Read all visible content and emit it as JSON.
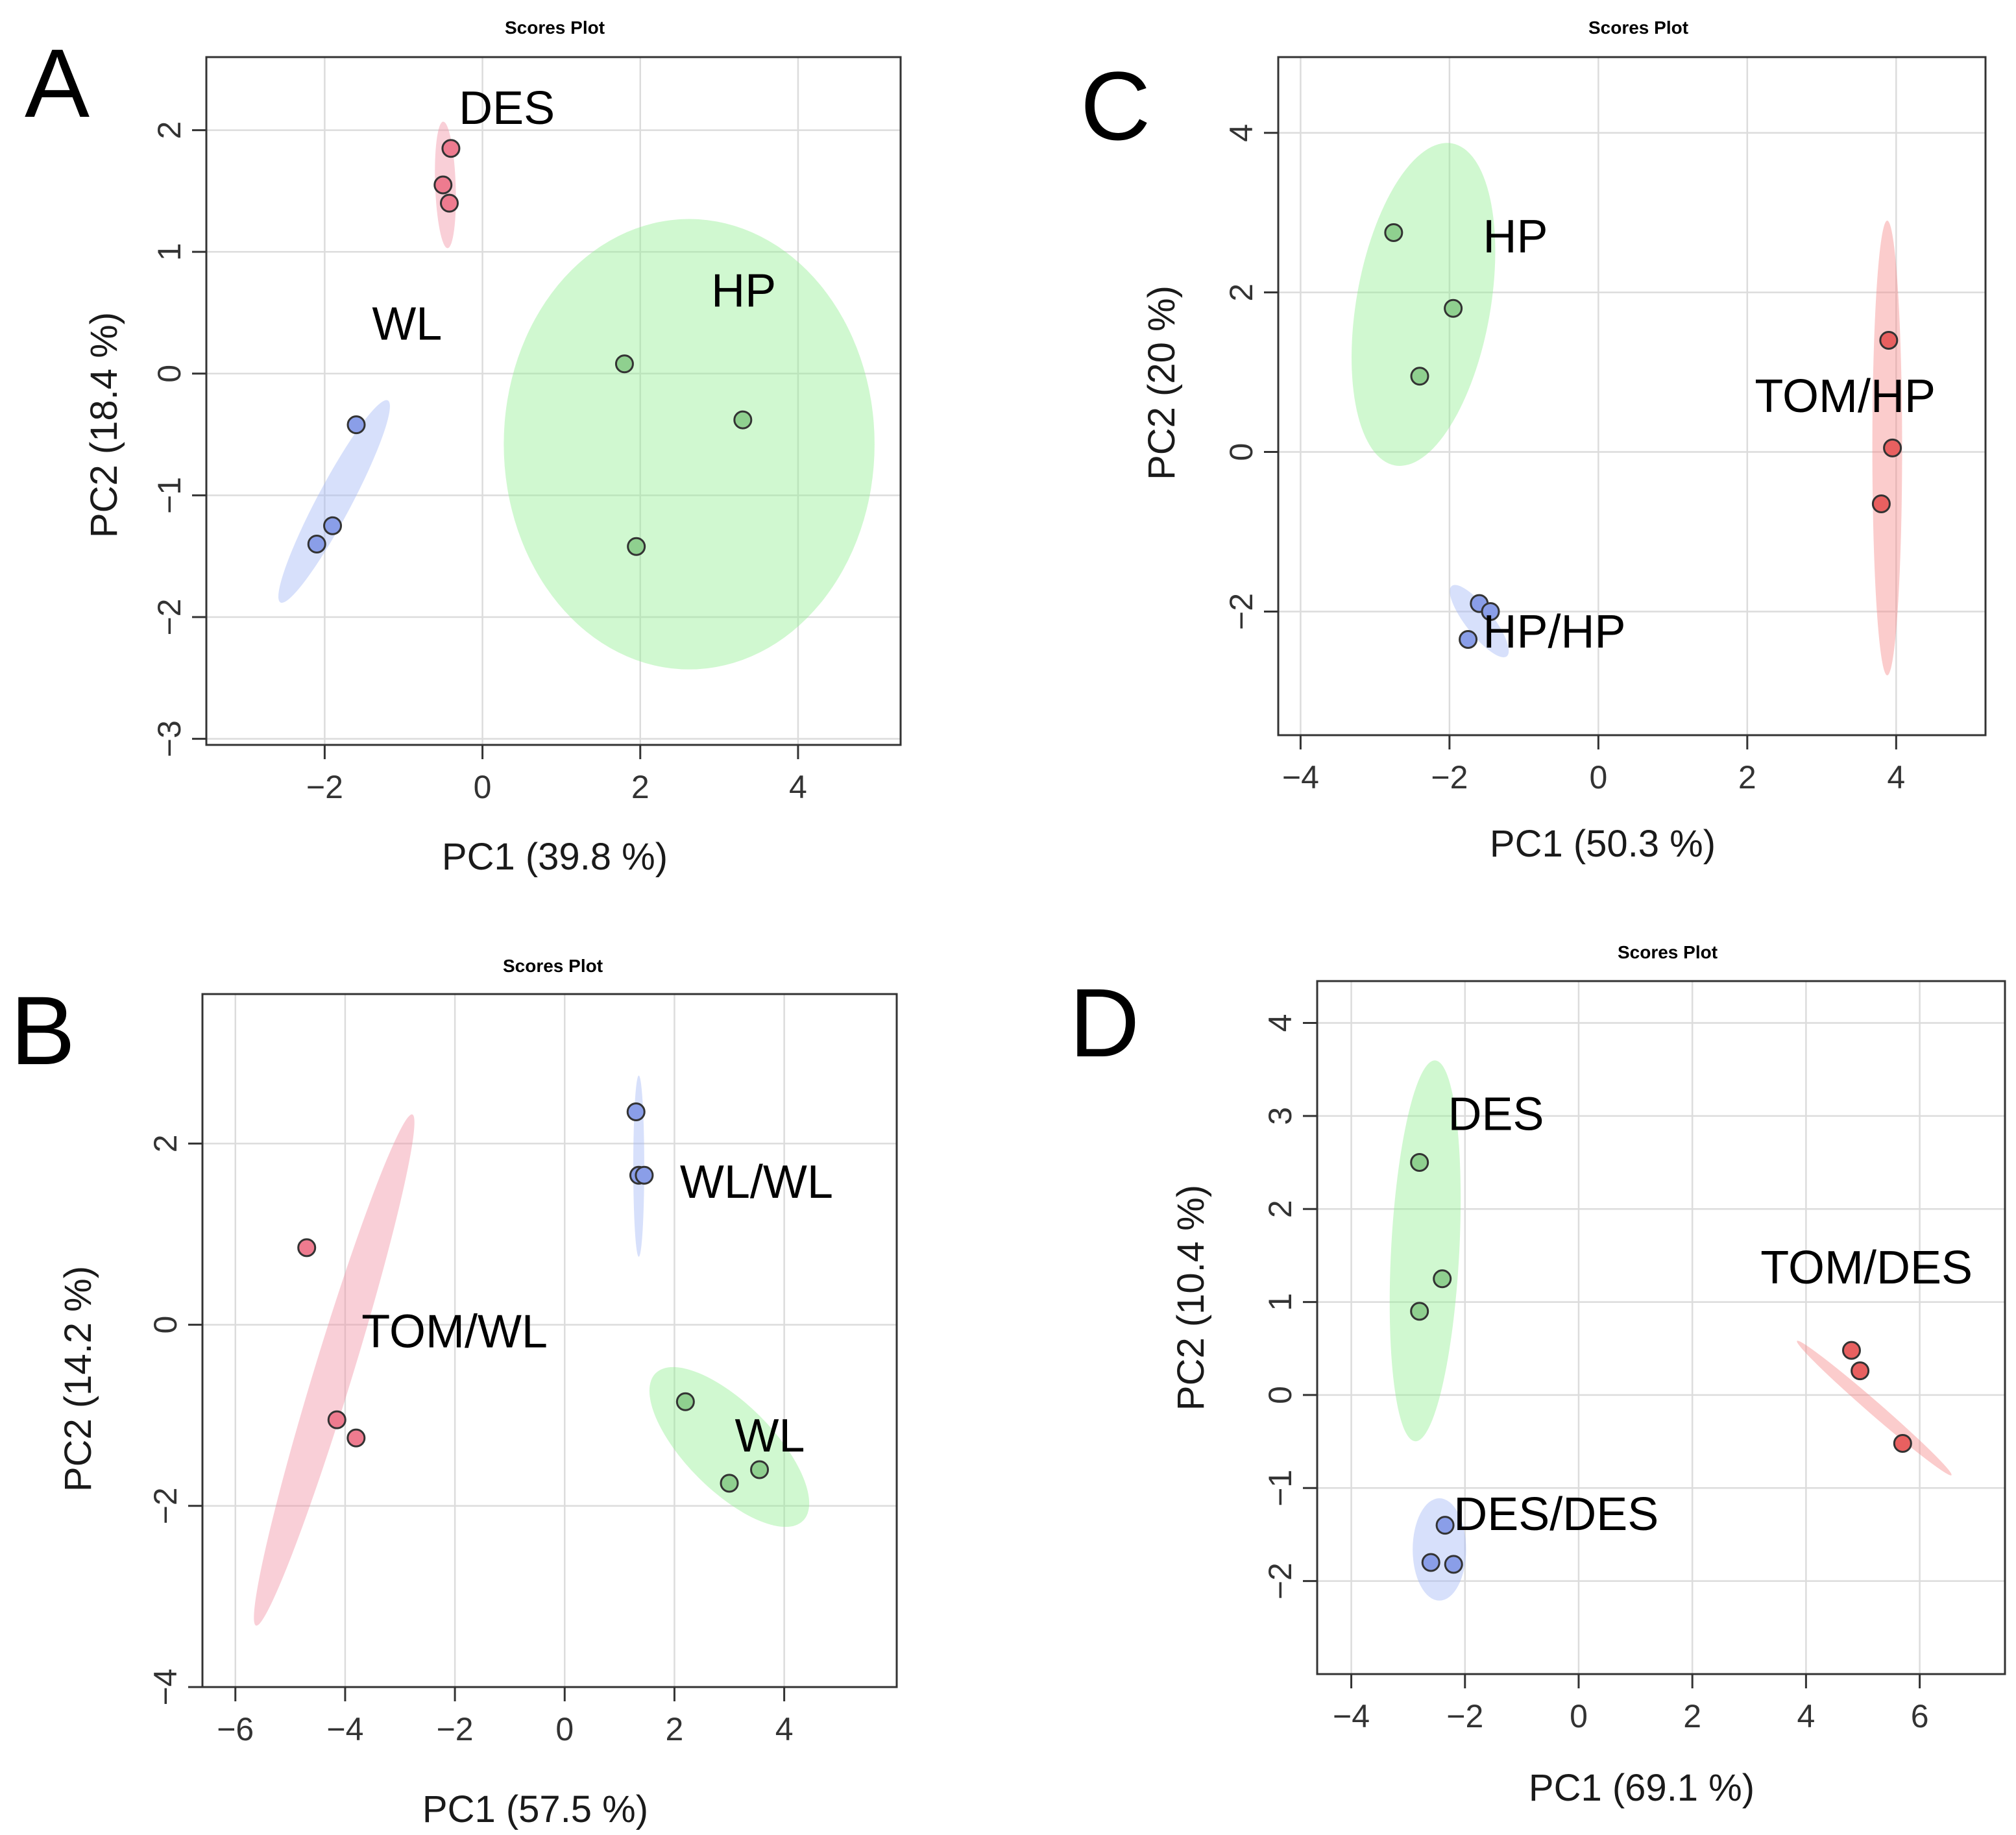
{
  "colors": {
    "green": "#90ee90",
    "pink": "#f08ca0",
    "blue": "#a0b4f5",
    "green_pt": "#8fd08f",
    "pink_pt": "#ee7b8f",
    "blue_pt": "#8a9ee8",
    "red": "#f58585",
    "red_pt": "#e86060"
  },
  "chart_data": [
    {
      "panel": "A",
      "type": "scatter",
      "title": "Scores Plot",
      "xlabel": "PC1 (39.8 %)",
      "ylabel": "PC2 (18.4 %)",
      "xlim": [
        -3.5,
        5.3
      ],
      "ylim": [
        -3.05,
        2.6
      ],
      "xticks": [
        -2,
        0,
        2,
        4
      ],
      "yticks": [
        -3,
        -2,
        -1,
        0,
        1,
        2
      ],
      "groups": [
        {
          "name": "DES",
          "color": "pink",
          "points": [
            [
              -0.5,
              1.55
            ],
            [
              -0.4,
              1.85
            ],
            [
              -0.42,
              1.4
            ]
          ],
          "ellipse": {
            "cx": -0.47,
            "cy": 1.55,
            "rx": 0.13,
            "ry": 0.52,
            "angle": 2
          },
          "label_at": [
            -0.3,
            2.05
          ]
        },
        {
          "name": "WL",
          "color": "blue",
          "points": [
            [
              -1.6,
              -0.42
            ],
            [
              -1.9,
              -1.25
            ],
            [
              -2.1,
              -1.4
            ]
          ],
          "ellipse": {
            "cx": -1.88,
            "cy": -1.05,
            "rx": 1.45,
            "ry": 0.14,
            "angle": 62
          },
          "label_at": [
            -1.4,
            0.28
          ]
        },
        {
          "name": "HP",
          "color": "green",
          "points": [
            [
              1.8,
              0.08
            ],
            [
              3.3,
              -0.38
            ],
            [
              1.95,
              -1.42
            ]
          ],
          "ellipse": {
            "cx": 2.62,
            "cy": -0.58,
            "rx": 2.35,
            "ry": 1.85,
            "angle": 0
          },
          "label_at": [
            2.9,
            0.55
          ]
        }
      ]
    },
    {
      "panel": "C",
      "type": "scatter",
      "title": "Scores Plot",
      "xlabel": "PC1 (50.3 %)",
      "ylabel": "PC2 (20 %)",
      "xlim": [
        -4.3,
        5.2
      ],
      "ylim": [
        -3.55,
        4.95
      ],
      "xticks": [
        -4,
        -2,
        0,
        2,
        4
      ],
      "yticks": [
        -2,
        0,
        2,
        4
      ],
      "groups": [
        {
          "name": "HP",
          "color": "green",
          "points": [
            [
              -2.75,
              2.75
            ],
            [
              -1.95,
              1.8
            ],
            [
              -2.4,
              0.95
            ]
          ],
          "ellipse": {
            "cx": -2.35,
            "cy": 1.85,
            "rx": 0.9,
            "ry": 2.05,
            "angle": -10
          },
          "label_at": [
            -1.55,
            2.5
          ]
        },
        {
          "name": "TOM/HP",
          "color": "red",
          "points": [
            [
              3.9,
              1.4
            ],
            [
              3.95,
              0.05
            ],
            [
              3.8,
              -0.65
            ]
          ],
          "ellipse": {
            "cx": 3.88,
            "cy": 0.05,
            "rx": 0.2,
            "ry": 2.85,
            "angle": 0
          },
          "label_at": [
            2.1,
            0.5
          ]
        },
        {
          "name": "HP/HP",
          "color": "blue",
          "points": [
            [
              -1.6,
              -1.9
            ],
            [
              -1.45,
              -2.0
            ],
            [
              -1.75,
              -2.35
            ]
          ],
          "ellipse": {
            "cx": -1.6,
            "cy": -2.12,
            "rx": 0.6,
            "ry": 0.17,
            "angle": -52
          },
          "label_at": [
            -1.55,
            -2.45
          ]
        }
      ]
    },
    {
      "panel": "B",
      "type": "scatter",
      "title": "Scores Plot",
      "xlabel": "PC1 (57.5 %)",
      "ylabel": "PC2 (14.2 %)",
      "xlim": [
        -6.6,
        6.05
      ],
      "ylim": [
        -4.0,
        3.65
      ],
      "xticks": [
        -6,
        -4,
        -2,
        0,
        2,
        4
      ],
      "yticks": [
        -4,
        -2,
        0,
        2
      ],
      "groups": [
        {
          "name": "WL/WL",
          "color": "blue",
          "points": [
            [
              1.3,
              2.35
            ],
            [
              1.35,
              1.65
            ],
            [
              1.45,
              1.65
            ]
          ],
          "ellipse": {
            "cx": 1.35,
            "cy": 1.75,
            "rx": 0.1,
            "ry": 1.0,
            "angle": 0
          },
          "label_at": [
            2.1,
            1.4
          ]
        },
        {
          "name": "TOM/WL",
          "color": "pink",
          "points": [
            [
              -4.7,
              0.85
            ],
            [
              -4.15,
              -1.05
            ],
            [
              -3.8,
              -1.25
            ]
          ],
          "ellipse": {
            "cx": -4.2,
            "cy": -0.5,
            "rx": 0.35,
            "ry": 2.95,
            "angle": -17
          },
          "label_at": [
            -3.7,
            -0.25
          ]
        },
        {
          "name": "WL",
          "color": "green",
          "points": [
            [
              2.2,
              -0.85
            ],
            [
              3.0,
              -1.75
            ],
            [
              3.55,
              -1.6
            ]
          ],
          "ellipse": {
            "cx": 3.0,
            "cy": -1.35,
            "rx": 1.9,
            "ry": 0.48,
            "angle": -45
          },
          "label_at": [
            3.1,
            -1.4
          ]
        }
      ]
    },
    {
      "panel": "D",
      "type": "scatter",
      "title": "Scores Plot",
      "xlabel": "PC1 (69.1 %)",
      "ylabel": "PC2 (10.4 %)",
      "xlim": [
        -4.6,
        7.5
      ],
      "ylim": [
        -3.0,
        4.45
      ],
      "xticks": [
        -4,
        -2,
        0,
        2,
        4,
        6
      ],
      "yticks": [
        -2,
        -1,
        0,
        1,
        2,
        3,
        4
      ],
      "groups": [
        {
          "name": "DES",
          "color": "green",
          "points": [
            [
              -2.8,
              2.5
            ],
            [
              -2.4,
              1.25
            ],
            [
              -2.8,
              0.9
            ]
          ],
          "ellipse": {
            "cx": -2.7,
            "cy": 1.55,
            "rx": 0.6,
            "ry": 2.05,
            "angle": -3
          },
          "label_at": [
            -2.3,
            2.85
          ]
        },
        {
          "name": "TOM/DES",
          "color": "red",
          "points": [
            [
              4.8,
              0.48
            ],
            [
              4.95,
              0.26
            ],
            [
              5.7,
              -0.52
            ]
          ],
          "ellipse": {
            "cx": 5.2,
            "cy": -0.14,
            "rx": 1.8,
            "ry": 0.07,
            "angle": -41
          },
          "label_at": [
            3.2,
            1.2
          ]
        },
        {
          "name": "DES/DES",
          "color": "blue",
          "points": [
            [
              -2.35,
              -1.4
            ],
            [
              -2.6,
              -1.8
            ],
            [
              -2.2,
              -1.82
            ]
          ],
          "ellipse": {
            "cx": -2.45,
            "cy": -1.66,
            "rx": 0.47,
            "ry": 0.55,
            "angle": 0
          },
          "label_at": [
            -2.2,
            -1.45
          ]
        }
      ]
    }
  ],
  "panel_labels": [
    "A",
    "C",
    "B",
    "D"
  ]
}
